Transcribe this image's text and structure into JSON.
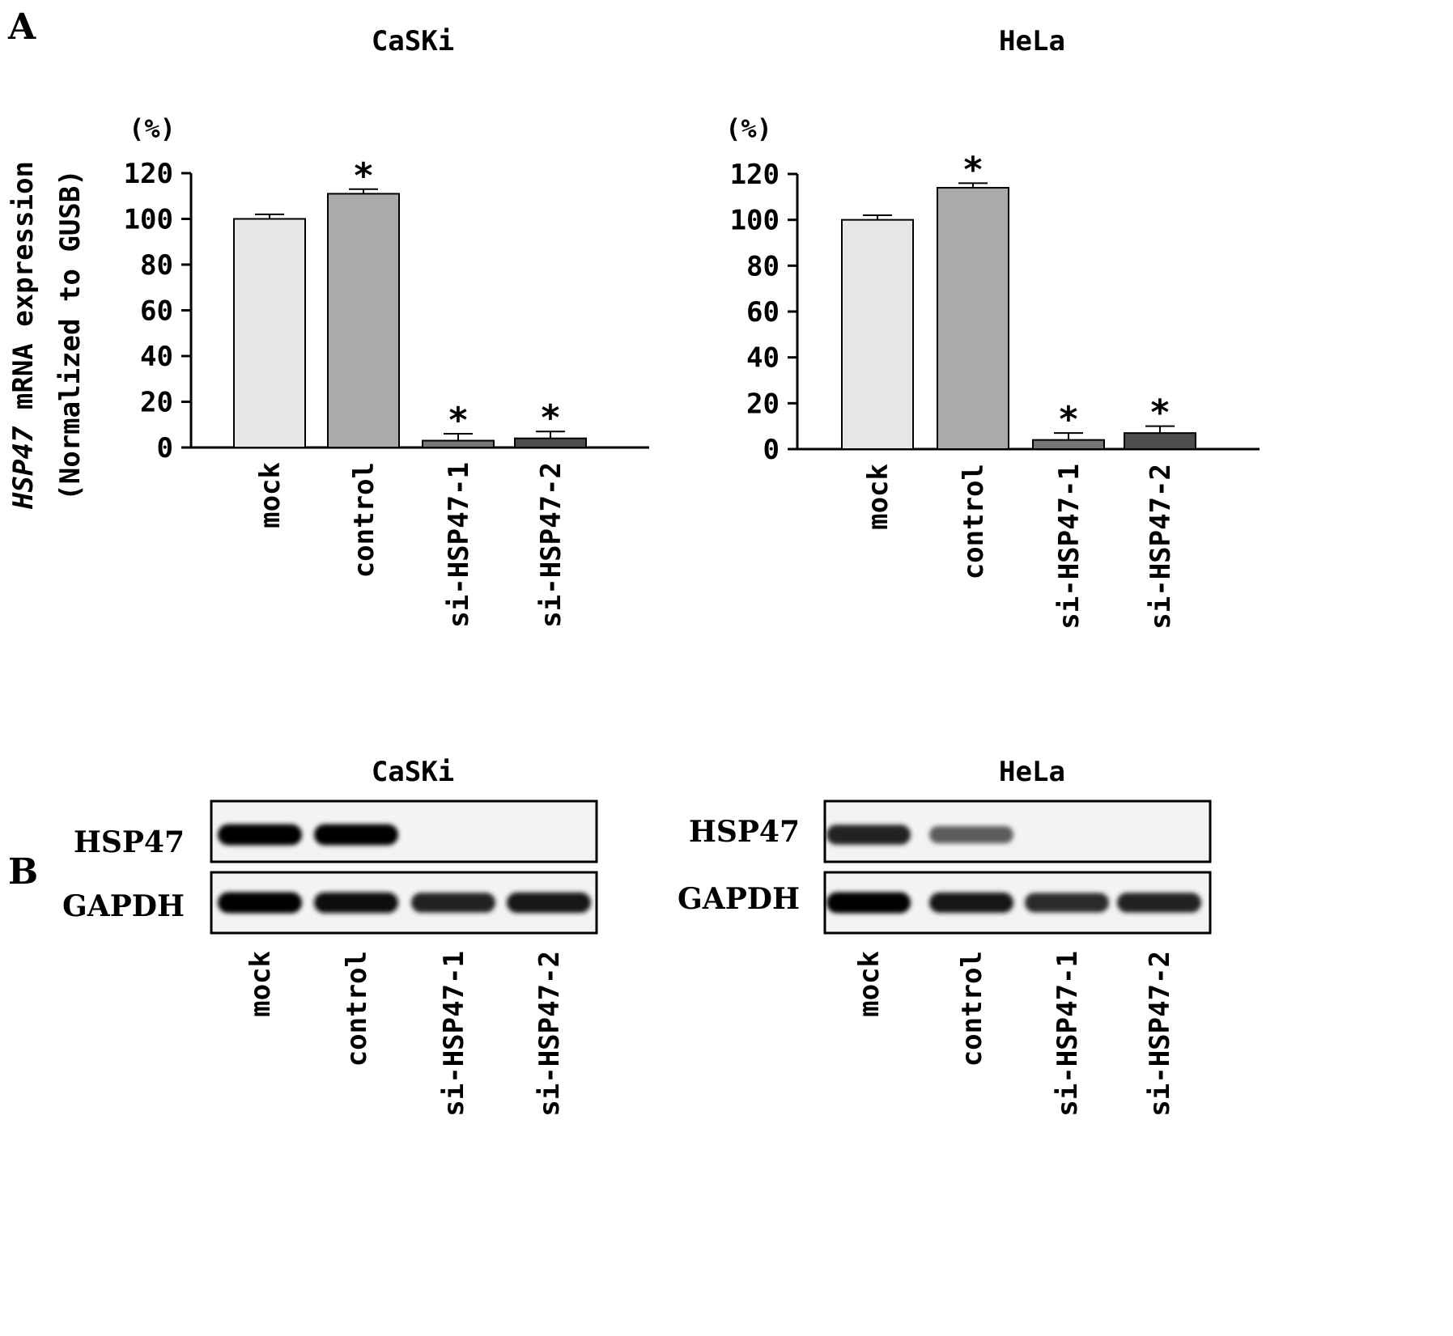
{
  "panels": {
    "a_label": "A",
    "b_label": "B"
  },
  "y_axis": {
    "label_gene": "HSP47",
    "label_rest": " mRNA expression",
    "label_line2": "(Normalized to GUSB)",
    "unit": "(%)"
  },
  "chart_data": [
    {
      "type": "bar",
      "title": "CaSKi",
      "categories": [
        "mock",
        "control",
        "si-HSP47-1",
        "si-HSP47-2"
      ],
      "values": [
        100,
        111,
        3,
        4
      ],
      "errors": [
        2,
        2,
        3,
        3
      ],
      "significance": [
        "",
        "*",
        "*",
        "*"
      ],
      "colors": [
        "#e6e6e6",
        "#aaaaaa",
        "#777777",
        "#4d4d4d"
      ],
      "ylim": [
        0,
        120
      ],
      "yticks": [
        0,
        20,
        40,
        60,
        80,
        100,
        120
      ],
      "xlabel": "",
      "ylabel": "HSP47 mRNA expression (Normalized to GUSB)",
      "grid": false
    },
    {
      "type": "bar",
      "title": "HeLa",
      "categories": [
        "mock",
        "control",
        "si-HSP47-1",
        "si-HSP47-2"
      ],
      "values": [
        100,
        114,
        4,
        7
      ],
      "errors": [
        2,
        2,
        3,
        3
      ],
      "significance": [
        "",
        "*",
        "*",
        "*"
      ],
      "colors": [
        "#e6e6e6",
        "#aaaaaa",
        "#777777",
        "#4d4d4d"
      ],
      "ylim": [
        0,
        120
      ],
      "yticks": [
        0,
        20,
        40,
        60,
        80,
        100,
        120
      ],
      "xlabel": "",
      "ylabel": "",
      "grid": false
    }
  ],
  "blots": [
    {
      "title": "CaSKi",
      "rows": [
        {
          "label": "HSP47",
          "intensity": [
            1.0,
            1.0,
            0,
            0
          ]
        },
        {
          "label": "GAPDH",
          "intensity": [
            1.0,
            0.95,
            0.85,
            0.92
          ]
        }
      ],
      "lanes": [
        "mock",
        "control",
        "si-HSP47-1",
        "si-HSP47-2"
      ]
    },
    {
      "title": "HeLa",
      "rows": [
        {
          "label": "HSP47",
          "intensity": [
            0.85,
            0.55,
            0,
            0
          ]
        },
        {
          "label": "GAPDH",
          "intensity": [
            1.0,
            0.9,
            0.8,
            0.85
          ]
        }
      ],
      "lanes": [
        "mock",
        "control",
        "si-HSP47-1",
        "si-HSP47-2"
      ]
    }
  ]
}
